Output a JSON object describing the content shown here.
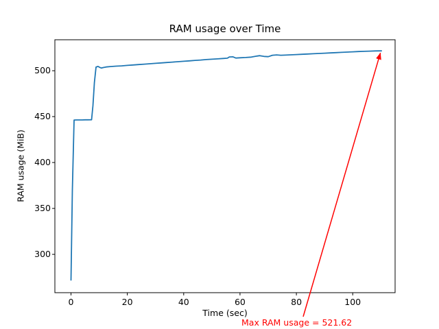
{
  "chart_data": {
    "type": "line",
    "title": "RAM usage over Time",
    "xlabel": "Time (sec)",
    "ylabel": "RAM usage (MiB)",
    "x_ticks": [
      0,
      20,
      40,
      60,
      80,
      100
    ],
    "y_ticks": [
      300,
      350,
      400,
      450,
      500
    ],
    "xlim": [
      -5.72,
      115.04
    ],
    "ylim": [
      258.3,
      533.7
    ],
    "grid": false,
    "legend": "none",
    "line_color": "#1f77b4",
    "axis_color": "#000000",
    "background_color": "#ffffff",
    "series": [
      {
        "x": [
          0,
          0.5,
          1.1,
          2,
          3,
          4,
          5,
          6,
          7.3,
          7.8,
          8.3,
          8.9,
          9.6,
          10.2,
          10.8,
          11.5,
          12.5,
          14,
          16,
          18,
          20,
          22,
          24,
          26,
          28,
          30,
          32,
          34,
          36,
          38,
          40,
          42,
          44,
          46,
          48,
          50,
          52,
          54,
          55.5,
          56.2,
          57.5,
          58.5,
          60,
          62,
          64,
          66,
          67,
          68.5,
          70,
          71.5,
          73,
          74.5,
          76,
          78,
          80,
          82,
          84,
          86,
          88,
          90,
          92,
          94,
          96,
          98,
          100,
          102,
          104,
          106,
          108,
          110.2
        ],
        "y": [
          272,
          370,
          446.3,
          446.4,
          446.4,
          446.4,
          446.5,
          446.5,
          446.6,
          462,
          487,
          503.9,
          504.7,
          503.6,
          502.9,
          503.5,
          504.1,
          504.5,
          505.0,
          505.3,
          505.8,
          506.2,
          506.7,
          507.1,
          507.6,
          508.0,
          508.5,
          508.9,
          509.4,
          509.8,
          510.3,
          510.7,
          511.2,
          511.6,
          512.1,
          512.5,
          512.9,
          513.3,
          513.6,
          515.0,
          515.1,
          513.8,
          514.1,
          514.4,
          514.8,
          515.9,
          516.4,
          515.6,
          515.3,
          516.8,
          517.2,
          516.8,
          517.0,
          517.3,
          517.6,
          517.9,
          518.2,
          518.5,
          518.8,
          519.1,
          519.4,
          519.7,
          520.0,
          520.3,
          520.6,
          520.9,
          521.1,
          521.3,
          521.5,
          521.62
        ]
      }
    ],
    "annotation": {
      "label": "Max RAM usage = 521.62",
      "x": 110.2,
      "y": 521.62,
      "color": "#ff0000"
    }
  }
}
